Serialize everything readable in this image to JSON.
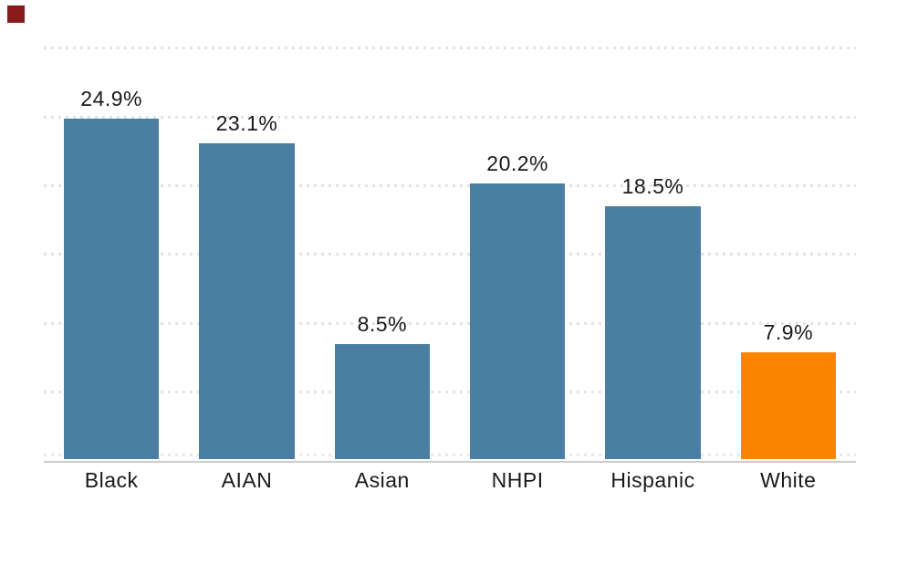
{
  "chart_data": {
    "type": "bar",
    "categories": [
      "Black",
      "AIAN",
      "Asian",
      "NHPI",
      "Hispanic",
      "White"
    ],
    "values": [
      24.9,
      23.1,
      8.5,
      20.2,
      18.5,
      7.9
    ],
    "value_labels": [
      "24.9%",
      "23.1%",
      "8.5%",
      "20.2%",
      "18.5%",
      "7.9%"
    ],
    "title": "",
    "xlabel": "",
    "ylabel": "",
    "ylim": [
      0,
      30
    ],
    "gridline_values": [
      5,
      10,
      15,
      20,
      25,
      30
    ],
    "grid_style": "dotted",
    "legend": "none",
    "bar_colors": [
      "#4A7EA3",
      "#4A7EA3",
      "#4A7EA3",
      "#4A7EA3",
      "#4A7EA3",
      "#FB8500"
    ],
    "default_bar_color": "#4A7EA3",
    "highlight_category": "White",
    "highlight_bar_color": "#FB8500",
    "gridline_color": "#E3E3E3",
    "axis_line_color": "#CCCCCC",
    "label_color": "#1A1A1A"
  },
  "decorations": {
    "corner_marker_color": "#8B1A1A"
  }
}
